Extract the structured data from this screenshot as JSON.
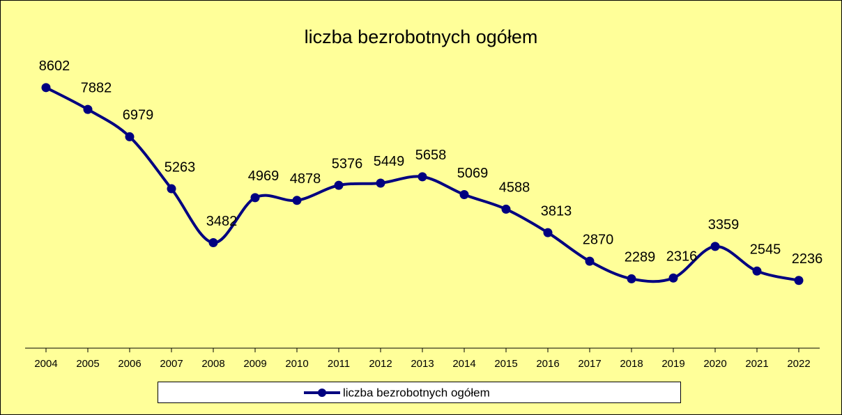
{
  "chart_data": {
    "type": "line",
    "title": "liczba bezrobotnych ogółem",
    "categories": [
      "2004",
      "2005",
      "2006",
      "2007",
      "2008",
      "2009",
      "2010",
      "2011",
      "2012",
      "2013",
      "2014",
      "2015",
      "2016",
      "2017",
      "2018",
      "2019",
      "2020",
      "2021",
      "2022"
    ],
    "series": [
      {
        "name": "liczba bezrobotnych ogółem",
        "color": "#000080",
        "values": [
          8602,
          7882,
          6979,
          5263,
          3482,
          4969,
          4878,
          5376,
          5449,
          5658,
          5069,
          4588,
          3813,
          2870,
          2289,
          2316,
          3359,
          2545,
          2236
        ]
      }
    ],
    "ylim": [
      0,
      10000
    ],
    "smooth": true,
    "background": "#FFFF99",
    "legend": "bottom"
  }
}
